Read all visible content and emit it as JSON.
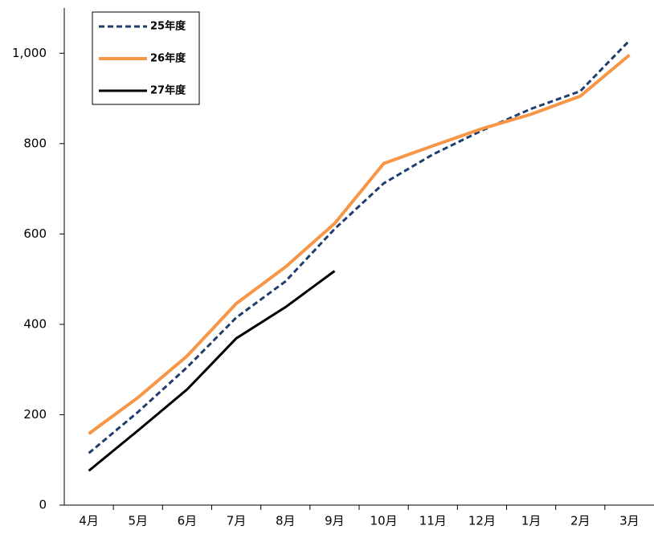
{
  "chart_data": {
    "type": "line",
    "categories": [
      "4月",
      "5月",
      "6月",
      "7月",
      "8月",
      "9月",
      "10月",
      "11月",
      "12月",
      "1月",
      "2月",
      "3月"
    ],
    "series": [
      {
        "name": "25年度",
        "color": "#1f3d6e",
        "style": "dashed",
        "width": 3,
        "values": [
          115,
          206,
          305,
          415,
          495,
          611,
          712,
          776,
          829,
          877,
          916,
          1028
        ]
      },
      {
        "name": "26年度",
        "color": "#f79646",
        "style": "solid",
        "width": 4,
        "values": [
          158,
          238,
          330,
          446,
          527,
          623,
          756,
          795,
          833,
          865,
          905,
          996
        ]
      },
      {
        "name": "27年度",
        "color": "#000000",
        "style": "solid",
        "width": 3,
        "values": [
          76,
          165,
          256,
          369,
          438,
          518,
          null,
          null,
          null,
          null,
          null,
          null
        ]
      }
    ],
    "ylim": [
      0,
      1100
    ],
    "yticks": [
      0,
      200,
      400,
      600,
      800,
      {
        "value": 1000,
        "label": "1,000"
      }
    ],
    "legend": "top-left"
  }
}
